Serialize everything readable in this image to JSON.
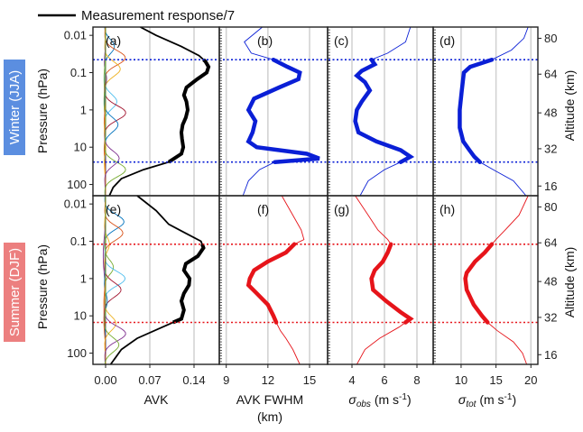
{
  "legend": {
    "label": "Measurement response/7"
  },
  "labels": {
    "pressure": "Pressure (hPa)",
    "altitude": "Altitude (km)",
    "avk": "AVK",
    "fwhm_1": "AVK FWHM",
    "fwhm_2": "(km)",
    "sigma_obs": {
      "sym": "σ",
      "sub": "obs",
      "unit": " (m s",
      "exp": "-1",
      "close": ")"
    },
    "sigma_tot": {
      "sym": "σ",
      "sub": "tot",
      "unit": " (m s",
      "exp": "-1",
      "close": ")"
    }
  },
  "seasons": [
    {
      "label": "Winter (JJA)",
      "color": "#5b8ee0"
    },
    {
      "label": "Summer (DJF)",
      "color": "#ec7f7f"
    }
  ],
  "colors": {
    "winter_line": "#0a1fd6",
    "summer_line": "#e6141a",
    "grid": "#d0d0d0",
    "axes": "#222222",
    "dotted_winter": "#0a1fd6",
    "dotted_summer": "#e6141a"
  },
  "panel_labels": [
    "(a)",
    "(b)",
    "(c)",
    "(d)",
    "(e)",
    "(f)",
    "(g)",
    "(h)"
  ],
  "chart_data": [
    {
      "type": "line",
      "y_scale": "log",
      "y_axis_ticks": [
        "0.01",
        "0.1",
        "1",
        "10",
        "100"
      ],
      "y_axis_values": [
        0.01,
        0.1,
        1,
        10,
        100
      ],
      "y_range": [
        200,
        0.006
      ],
      "alt_ticks": [
        "80",
        "64",
        "48",
        "32",
        "16"
      ],
      "alt_values": [
        0.012,
        0.11,
        1.2,
        11,
        110
      ],
      "x_axes": [
        {
          "panel": "avk",
          "ticks": [
            "0.00",
            "0.07",
            "0.14"
          ],
          "values": [
            0,
            0.07,
            0.14
          ],
          "range": [
            -0.02,
            0.18
          ]
        },
        {
          "panel": "fwhm",
          "ticks": [
            "9",
            "12",
            "15"
          ],
          "values": [
            9,
            12,
            15
          ],
          "range": [
            8.5,
            16.3
          ]
        },
        {
          "panel": "sigma_obs",
          "ticks": [
            "4",
            "6",
            "8"
          ],
          "values": [
            4,
            6,
            8
          ],
          "range": [
            2.5,
            9.0
          ]
        },
        {
          "panel": "sigma_tot",
          "ticks": [
            "10",
            "15",
            "20"
          ],
          "values": [
            10,
            15,
            20
          ],
          "range": [
            6.0,
            21.0
          ]
        }
      ],
      "winter": {
        "usable_range_hPa": [
          0.045,
          25
        ],
        "measurement_response_over7": [
          [
            0.006,
            0.055
          ],
          [
            0.01,
            0.08
          ],
          [
            0.02,
            0.12
          ],
          [
            0.035,
            0.148
          ],
          [
            0.05,
            0.158
          ],
          [
            0.07,
            0.163
          ],
          [
            0.1,
            0.16
          ],
          [
            0.15,
            0.145
          ],
          [
            0.25,
            0.128
          ],
          [
            0.4,
            0.124
          ],
          [
            0.6,
            0.128
          ],
          [
            1,
            0.13
          ],
          [
            1.6,
            0.127
          ],
          [
            2.5,
            0.122
          ],
          [
            4,
            0.12
          ],
          [
            6,
            0.121
          ],
          [
            10,
            0.123
          ],
          [
            15,
            0.12
          ],
          [
            25,
            0.1
          ],
          [
            40,
            0.06
          ],
          [
            70,
            0.025
          ],
          [
            120,
            0.012
          ],
          [
            200,
            0.006
          ]
        ],
        "fwhm": [
          [
            0.006,
            11.6
          ],
          [
            0.015,
            10.3
          ],
          [
            0.03,
            10.8
          ],
          [
            0.045,
            12.4
          ],
          [
            0.07,
            13.4
          ],
          [
            0.1,
            14.3
          ],
          [
            0.15,
            14.2
          ],
          [
            0.25,
            12.8
          ],
          [
            0.5,
            11.0
          ],
          [
            1,
            10.6
          ],
          [
            2,
            11.1
          ],
          [
            4,
            10.9
          ],
          [
            7,
            10.6
          ],
          [
            10,
            11.2
          ],
          [
            15,
            14.8
          ],
          [
            20,
            15.7
          ],
          [
            25,
            12.5
          ],
          [
            40,
            11.4
          ],
          [
            80,
            10.6
          ],
          [
            200,
            10.2
          ]
        ],
        "sigma_obs": [
          [
            0.006,
            7.6
          ],
          [
            0.015,
            7.3
          ],
          [
            0.03,
            6.2
          ],
          [
            0.045,
            5.2
          ],
          [
            0.06,
            5.4
          ],
          [
            0.09,
            4.6
          ],
          [
            0.12,
            4.3
          ],
          [
            0.18,
            4.8
          ],
          [
            0.3,
            5.1
          ],
          [
            0.6,
            4.6
          ],
          [
            1,
            4.3
          ],
          [
            2,
            4.2
          ],
          [
            4,
            4.4
          ],
          [
            7,
            5.5
          ],
          [
            12,
            7.0
          ],
          [
            18,
            7.6
          ],
          [
            25,
            7.0
          ],
          [
            40,
            6.0
          ],
          [
            80,
            5.0
          ],
          [
            200,
            4.5
          ]
        ],
        "sigma_tot": [
          [
            0.006,
            19.6
          ],
          [
            0.012,
            19.0
          ],
          [
            0.025,
            17.2
          ],
          [
            0.045,
            14.4
          ],
          [
            0.07,
            11.3
          ],
          [
            0.1,
            10.4
          ],
          [
            0.3,
            10.1
          ],
          [
            1,
            9.8
          ],
          [
            3,
            9.8
          ],
          [
            7,
            10.3
          ],
          [
            12,
            11.2
          ],
          [
            18,
            11.9
          ],
          [
            25,
            12.7
          ],
          [
            40,
            14.6
          ],
          [
            80,
            17.5
          ],
          [
            200,
            19.3
          ]
        ]
      },
      "summer": {
        "usable_range_hPa": [
          0.12,
          15
        ],
        "measurement_response_over7": [
          [
            0.006,
            0.05
          ],
          [
            0.015,
            0.08
          ],
          [
            0.035,
            0.1
          ],
          [
            0.06,
            0.126
          ],
          [
            0.1,
            0.151
          ],
          [
            0.15,
            0.155
          ],
          [
            0.25,
            0.146
          ],
          [
            0.4,
            0.127
          ],
          [
            0.6,
            0.124
          ],
          [
            1,
            0.133
          ],
          [
            1.5,
            0.132
          ],
          [
            2.5,
            0.124
          ],
          [
            4,
            0.12
          ],
          [
            7,
            0.124
          ],
          [
            12,
            0.12
          ],
          [
            20,
            0.09
          ],
          [
            40,
            0.05
          ],
          [
            80,
            0.025
          ],
          [
            200,
            0.008
          ]
        ],
        "fwhm": [
          [
            0.006,
            13.0
          ],
          [
            0.02,
            13.8
          ],
          [
            0.05,
            14.4
          ],
          [
            0.09,
            14.6
          ],
          [
            0.12,
            13.9
          ],
          [
            0.2,
            13.3
          ],
          [
            0.35,
            12.0
          ],
          [
            0.6,
            11.0
          ],
          [
            1,
            10.7
          ],
          [
            1.5,
            10.6
          ],
          [
            2.5,
            11.2
          ],
          [
            5,
            12.0
          ],
          [
            10,
            12.4
          ],
          [
            15,
            12.6
          ],
          [
            25,
            12.9
          ],
          [
            40,
            13.3
          ],
          [
            80,
            13.8
          ],
          [
            200,
            14.3
          ]
        ],
        "sigma_obs": [
          [
            0.006,
            4.2
          ],
          [
            0.02,
            5.0
          ],
          [
            0.05,
            5.6
          ],
          [
            0.09,
            6.2
          ],
          [
            0.12,
            6.4
          ],
          [
            0.2,
            6.2
          ],
          [
            0.35,
            5.9
          ],
          [
            0.6,
            5.4
          ],
          [
            1,
            5.2
          ],
          [
            2,
            5.3
          ],
          [
            4,
            6.1
          ],
          [
            8,
            7.0
          ],
          [
            12,
            7.6
          ],
          [
            20,
            6.9
          ],
          [
            40,
            5.7
          ],
          [
            80,
            4.8
          ],
          [
            200,
            4.3
          ]
        ],
        "sigma_tot": [
          [
            0.006,
            19.6
          ],
          [
            0.02,
            18.3
          ],
          [
            0.05,
            16.3
          ],
          [
            0.09,
            15.0
          ],
          [
            0.12,
            14.4
          ],
          [
            0.2,
            13.4
          ],
          [
            0.35,
            12.0
          ],
          [
            0.7,
            10.8
          ],
          [
            1,
            10.6
          ],
          [
            2,
            10.8
          ],
          [
            5,
            11.8
          ],
          [
            10,
            13.0
          ],
          [
            15,
            13.8
          ],
          [
            25,
            15.2
          ],
          [
            50,
            17.5
          ],
          [
            100,
            18.8
          ],
          [
            200,
            19.4
          ]
        ]
      }
    }
  ]
}
